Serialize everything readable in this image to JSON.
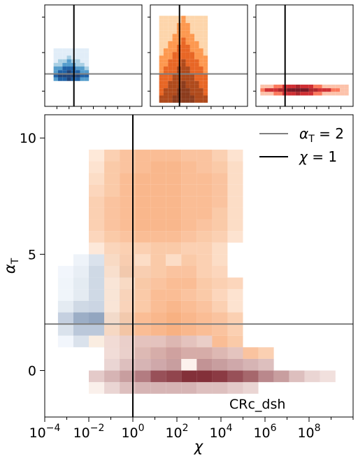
{
  "chart_data": [
    {
      "id": "main",
      "type": "heatmap",
      "xlabel": "χ",
      "ylabel": "α",
      "ylabel_sub": "T",
      "x_scale": "log",
      "xlim_log10": [
        -4,
        10
      ],
      "ylim": [
        -2,
        11
      ],
      "xticks": [
        {
          "value": -4,
          "base": "10",
          "exp": "−4"
        },
        {
          "value": -2,
          "base": "10",
          "exp": "−2"
        },
        {
          "value": 0,
          "base": "10",
          "exp": "0"
        },
        {
          "value": 2,
          "base": "10",
          "exp": "2"
        },
        {
          "value": 4,
          "base": "10",
          "exp": "4"
        },
        {
          "value": 6,
          "base": "10",
          "exp": "6"
        },
        {
          "value": 8,
          "base": "10",
          "exp": "8"
        }
      ],
      "yticks": [
        {
          "value": 0,
          "label": "0"
        },
        {
          "value": 5,
          "label": "5"
        },
        {
          "value": 10,
          "label": "10"
        }
      ],
      "ref_lines": [
        {
          "orientation": "horizontal",
          "value": 2,
          "color": "#808080"
        },
        {
          "orientation": "vertical",
          "value_log10": 0,
          "color": "#000000"
        }
      ],
      "legend": {
        "position": "top-right",
        "items": [
          {
            "text": "α",
            "sub": "T",
            "suffix": " = 2",
            "color": "#808080"
          },
          {
            "text": "χ",
            "sub": "",
            "suffix": " = 1",
            "color": "#000000"
          }
        ]
      },
      "annotation": "CRc_dsh",
      "bins": {
        "x_start_log10": -3.4,
        "x_step_log10": 0.7,
        "y_start": -1,
        "y_step": 0.5
      },
      "layers": [
        {
          "name": "blue",
          "color_low": "#f7fbff",
          "color_high": "#08306b",
          "alpha": 0.85,
          "rows": [
            {
              "y": 1.0,
              "start": 0,
              "cells": [
                0.03,
                0.15,
                0.2,
                0.2
              ]
            },
            {
              "y": 1.5,
              "start": 0,
              "cells": [
                0.15,
                0.3,
                0.3,
                0.28,
                0.3
              ]
            },
            {
              "y": 2.0,
              "start": 0,
              "cells": [
                0.25,
                0.45,
                0.5,
                0.5,
                0.4
              ]
            },
            {
              "y": 2.5,
              "start": 0,
              "cells": [
                0.1,
                0.2,
                0.22,
                0.22,
                0.15
              ]
            },
            {
              "y": 3.0,
              "start": 0,
              "cells": [
                0.04,
                0.1,
                0.2,
                0.25,
                0.2
              ]
            },
            {
              "y": 3.5,
              "start": 0,
              "cells": [
                0.04,
                0.1,
                0.2,
                0.22,
                0.2,
                0.08
              ]
            },
            {
              "y": 4.0,
              "start": 0,
              "cells": [
                0.03,
                0.08,
                0.2,
                0.25,
                0.4,
                0.12
              ]
            },
            {
              "y": 4.5,
              "start": 1,
              "cells": [
                0.05,
                0.15,
                0.2,
                0.15
              ]
            },
            {
              "y": 5.0,
              "start": 2,
              "cells": [
                0.05,
                0.08
              ]
            }
          ]
        },
        {
          "name": "orange",
          "color_low": "#fff5eb",
          "color_high": "#f16913",
          "alpha": 0.9,
          "rows": [
            {
              "y": 0.5,
              "start": 3,
              "cells": [
                0.25,
                0.35,
                0.45,
                0.5,
                0.5,
                0.55,
                0.55,
                0.5,
                0.45,
                0.4,
                0.3
              ]
            },
            {
              "y": 1.0,
              "start": 2,
              "cells": [
                0.05,
                0.3,
                0.4,
                0.5,
                0.5,
                0.55,
                0.5,
                0.5,
                0.45,
                0.35
              ]
            },
            {
              "y": 1.5,
              "start": 3,
              "cells": [
                0.2,
                0.35,
                0.45,
                0.5,
                0.55,
                0.5,
                0.45,
                0.4,
                0.3
              ]
            },
            {
              "y": 2.0,
              "start": 3,
              "cells": [
                0.15,
                0.3,
                0.45,
                0.5,
                0.55,
                0.5,
                0.45,
                0.4,
                0.3
              ]
            },
            {
              "y": 2.5,
              "start": 3,
              "cells": [
                0.1,
                0.25,
                0.35,
                0.45,
                0.5,
                0.45,
                0.4,
                0.3,
                0.15
              ]
            },
            {
              "y": 3.0,
              "start": 3,
              "cells": [
                0.1,
                0.25,
                0.35,
                0.45,
                0.45,
                0.4,
                0.35,
                0.25,
                0.15
              ]
            },
            {
              "y": 3.5,
              "start": 3,
              "cells": [
                0.1,
                0.2,
                0.35,
                0.4,
                0.45,
                0.45,
                0.35,
                0.3,
                0.25
              ]
            },
            {
              "y": 4.0,
              "start": 3,
              "cells": [
                0.15,
                0.3,
                0.3,
                0.35,
                0.4,
                0.4,
                0.3,
                0.25
              ]
            },
            {
              "y": 4.5,
              "start": 3,
              "cells": [
                0.2,
                0.3,
                0.2,
                0.35,
                0.2,
                0.35,
                0.3,
                0.2
              ]
            },
            {
              "y": 5.0,
              "start": 2,
              "cells": [
                0.1,
                0.25,
                0.3,
                0.3,
                0.35,
                0.35,
                0.3,
                0.3,
                0.2
              ]
            },
            {
              "y": 5.5,
              "start": 2,
              "cells": [
                0.25,
                0.35,
                0.4,
                0.45,
                0.45,
                0.45,
                0.4,
                0.35,
                0.3,
                0.15
              ]
            },
            {
              "y": 6.0,
              "start": 2,
              "cells": [
                0.3,
                0.4,
                0.45,
                0.5,
                0.5,
                0.5,
                0.45,
                0.4,
                0.35,
                0.2
              ]
            },
            {
              "y": 6.5,
              "start": 2,
              "cells": [
                0.3,
                0.4,
                0.45,
                0.5,
                0.5,
                0.5,
                0.45,
                0.45,
                0.35,
                0.2
              ]
            },
            {
              "y": 7.0,
              "start": 2,
              "cells": [
                0.3,
                0.4,
                0.45,
                0.5,
                0.5,
                0.5,
                0.45,
                0.45,
                0.4,
                0.2
              ]
            },
            {
              "y": 7.5,
              "start": 2,
              "cells": [
                0.25,
                0.35,
                0.45,
                0.5,
                0.5,
                0.5,
                0.45,
                0.45,
                0.4,
                0.2
              ]
            },
            {
              "y": 8.0,
              "start": 2,
              "cells": [
                0.2,
                0.35,
                0.45,
                0.5,
                0.5,
                0.5,
                0.45,
                0.45,
                0.4,
                0.2
              ]
            },
            {
              "y": 8.5,
              "start": 2,
              "cells": [
                0.15,
                0.35,
                0.4,
                0.45,
                0.5,
                0.5,
                0.45,
                0.4,
                0.35,
                0.2
              ]
            },
            {
              "y": 9.0,
              "start": 2,
              "cells": [
                0.1,
                0.3,
                0.4,
                0.45,
                0.45,
                0.45,
                0.4,
                0.4,
                0.3,
                0.15
              ]
            }
          ]
        },
        {
          "name": "red",
          "color_low": "#fff5f0",
          "color_high": "#67000d",
          "alpha": 0.9,
          "rows": [
            {
              "y": -1.0,
              "start": 2,
              "cells": [
                0.03,
                0.15,
                0.25,
                0.3,
                0.3,
                0.3,
                0.3,
                0.25,
                0.25,
                0.2,
                0.15
              ]
            },
            {
              "y": -0.5,
              "start": 2,
              "cells": [
                0.2,
                0.3,
                0.4,
                0.55,
                0.75,
                0.8,
                0.9,
                0.9,
                0.85,
                0.75,
                0.65,
                0.5,
                0.4,
                0.25,
                0.15,
                0.1
              ]
            },
            {
              "y": 0.0,
              "start": 3,
              "cells": [
                0.15,
                0.25,
                0.3,
                0.35,
                0.4,
                0.02,
                0.45,
                0.4,
                0.35,
                0.3,
                0.25
              ]
            },
            {
              "y": 0.5,
              "start": 3,
              "cells": [
                0.1,
                0.15,
                0.25,
                0.3,
                0.35,
                0.3,
                0.3,
                0.25,
                0.2
              ]
            },
            {
              "y": 1.0,
              "start": 3,
              "cells": [
                0.1,
                0.15,
                0.2,
                0.2,
                0.25,
                0.2,
                0.15
              ]
            }
          ]
        }
      ]
    },
    {
      "id": "panel-blue",
      "type": "heatmap",
      "hline": 2,
      "vline_log10": 0,
      "colors": [
        "#deebf7",
        "#9ecae1",
        "#4292c6",
        "#08519c",
        "#08306b"
      ]
    },
    {
      "id": "panel-orange",
      "type": "heatmap",
      "hline": 2,
      "vline_log10": 0,
      "colors": [
        "#fdd0a2",
        "#fd8d3c",
        "#e6550d",
        "#a63603",
        "#7f2704"
      ]
    },
    {
      "id": "panel-red",
      "type": "heatmap",
      "hline": 2,
      "vline_log10": 0,
      "colors": [
        "#fcbba1",
        "#fb6a4a",
        "#cb181d",
        "#a50f15",
        "#67000d"
      ]
    }
  ]
}
